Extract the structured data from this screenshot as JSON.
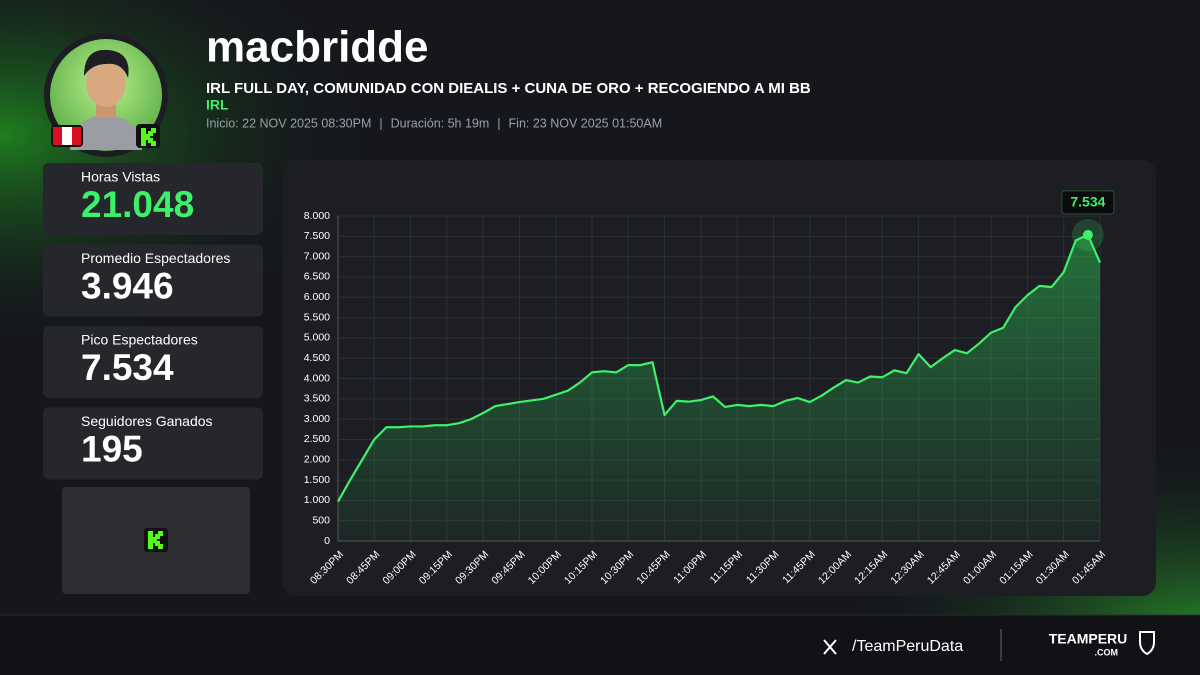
{
  "header": {
    "name": "macbridde",
    "stream_title": "IRL FULL DAY, COMUNIDAD CON DIEALIS + CUNA DE ORO + RECOGIENDO A MI BB",
    "category": "IRL",
    "start": "Inicio: 22 NOV 2025 08:30PM",
    "duration": "Duración: 5h 19m",
    "end": "Fin: 23 NOV 2025 01:50AM"
  },
  "stats": [
    {
      "label": "Horas Vistas",
      "value": "21.048"
    },
    {
      "label": "Promedio Espectadores",
      "value": "3.946"
    },
    {
      "label": "Pico Espectadores",
      "value": "7.534"
    },
    {
      "label": "Seguidores Ganados",
      "value": "195"
    }
  ],
  "footer": {
    "handle": "/TeamPeruData",
    "brand": "TEAMPERU",
    "brand_sub": ".COM"
  },
  "chart_data": {
    "type": "line",
    "color": "#3ef06a",
    "grid": true,
    "categories": [
      "08:30PM",
      null,
      null,
      "08:45PM",
      null,
      null,
      "09:00PM",
      null,
      null,
      "09:15PM",
      null,
      null,
      "09:30PM",
      null,
      null,
      "09:45PM",
      null,
      null,
      "10:00PM",
      null,
      null,
      "10:15PM",
      null,
      null,
      "10:30PM",
      null,
      null,
      "10:45PM",
      null,
      null,
      "11:00PM",
      null,
      null,
      "11:15PM",
      null,
      null,
      "11:30PM",
      null,
      null,
      "11:45PM",
      null,
      null,
      "12:00AM",
      null,
      null,
      "12:15AM",
      null,
      null,
      "12:30AM",
      null,
      null,
      "12:45AM",
      null,
      null,
      "01:00AM",
      null,
      null,
      "01:15AM",
      null,
      null,
      "01:30AM",
      null,
      null,
      "01:45AM"
    ],
    "values": [
      970,
      1500,
      2000,
      2500,
      2800,
      2800,
      2820,
      2820,
      2850,
      2850,
      2900,
      3000,
      3150,
      3320,
      3370,
      3420,
      3460,
      3500,
      3600,
      3700,
      3900,
      4150,
      4180,
      4150,
      4330,
      4330,
      4400,
      3100,
      3450,
      3430,
      3470,
      3560,
      3300,
      3350,
      3320,
      3350,
      3320,
      3450,
      3520,
      3420,
      3580,
      3780,
      3960,
      3900,
      4050,
      4030,
      4200,
      4130,
      4600,
      4280,
      4500,
      4700,
      4620,
      4860,
      5130,
      5250,
      5750,
      6050,
      6280,
      6250,
      6620,
      7400,
      7534,
      6850
    ],
    "value_labels": [
      null,
      null,
      null,
      null,
      null,
      null,
      null,
      null,
      null,
      null,
      null,
      null,
      null,
      null,
      null,
      null,
      null,
      null,
      null,
      null,
      null,
      null,
      null,
      null,
      null,
      null,
      null,
      null,
      null,
      null,
      null,
      null,
      null,
      null,
      null,
      null,
      null,
      null,
      null,
      null,
      null,
      null,
      null,
      null,
      null,
      null,
      null,
      null,
      null,
      null,
      null,
      null,
      null,
      null,
      null,
      null,
      null,
      null,
      null,
      null,
      null,
      null,
      "7.534",
      null
    ],
    "ylim": [
      0,
      8000
    ],
    "yticks": [
      0,
      500,
      {
        "value": 1000,
        "label": "1.000"
      },
      {
        "value": 1500,
        "label": "1.500"
      },
      {
        "value": 2000,
        "label": "2.000"
      },
      {
        "value": 2500,
        "label": "2.500"
      },
      {
        "value": 3000,
        "label": "3.000"
      },
      {
        "value": 3500,
        "label": "3.500"
      },
      {
        "value": 4000,
        "label": "4.000"
      },
      {
        "value": 4500,
        "label": "4.500"
      },
      {
        "value": 5000,
        "label": "5.000"
      },
      {
        "value": 5500,
        "label": "5.500"
      },
      {
        "value": 6000,
        "label": "6.000"
      },
      {
        "value": 6500,
        "label": "6.500"
      },
      {
        "value": 7000,
        "label": "7.000"
      },
      {
        "value": 7500,
        "label": "7.500"
      },
      {
        "value": 8000,
        "label": "8.000"
      }
    ]
  }
}
